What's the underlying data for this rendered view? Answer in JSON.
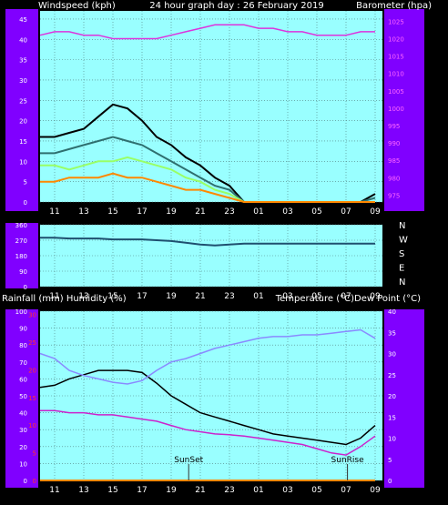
{
  "header": {
    "left": "Windspeed (kph)",
    "center": "24 hour graph day : 26 February 2019",
    "right": "Barometer (hpa)"
  },
  "mid_header": {
    "left": "Rainfall (mm)  Humidity (%)",
    "right": "Temperature (°C)Dew Point (°C)"
  },
  "colors": {
    "plot_bg": "#99ffff",
    "axis_purple": "#8000ff",
    "grid": "#4f7f7f",
    "barometer": "#dd33dd",
    "wind_gust": "#000000",
    "wind_avg": "#2f6f6f",
    "wind_light": "#99ff66",
    "wind_orange": "#ff8800",
    "direction": "#1f4f6f",
    "temperature": "#000000",
    "humidity": "#8a8aff",
    "dewpoint": "#cc22cc",
    "rain": "#ff8800"
  },
  "x_ticks": [
    "11",
    "13",
    "15",
    "17",
    "19",
    "21",
    "23",
    "01",
    "03",
    "05",
    "07",
    "09"
  ],
  "chart_data": [
    {
      "type": "line",
      "title": "24 hour graph day : 26 February 2019",
      "ylabel_left": "Windspeed (kph)",
      "ylabel_right": "Barometer (hpa)",
      "left_ticks": [
        "0",
        "5",
        "10",
        "15",
        "20",
        "25",
        "30",
        "35",
        "40",
        "45"
      ],
      "right_ticks": [
        "975",
        "980",
        "985",
        "990",
        "995",
        "1000",
        "1005",
        "1010",
        "1015",
        "1020",
        "1025"
      ],
      "ylim_left": [
        0,
        47
      ],
      "ylim_right": [
        973,
        1028
      ],
      "x": [
        10,
        11,
        12,
        13,
        14,
        15,
        16,
        17,
        18,
        19,
        20,
        21,
        22,
        23,
        24,
        25,
        26,
        27,
        28,
        29,
        30,
        31,
        32,
        33
      ],
      "series": [
        {
          "key": "barometer",
          "axis": "right",
          "values": [
            1021,
            1022,
            1022,
            1021,
            1021,
            1020,
            1020,
            1020,
            1020,
            1021,
            1022,
            1023,
            1024,
            1024,
            1024,
            1023,
            1023,
            1022,
            1022,
            1021,
            1021,
            1021,
            1022,
            1022
          ]
        },
        {
          "key": "wind_gust",
          "axis": "left",
          "values": [
            16,
            16,
            17,
            18,
            21,
            24,
            23,
            20,
            16,
            14,
            11,
            9,
            6,
            4,
            0,
            0,
            0,
            0,
            0,
            0,
            0,
            0,
            0,
            2
          ]
        },
        {
          "key": "wind_avg",
          "axis": "left",
          "values": [
            12,
            12,
            13,
            14,
            15,
            16,
            15,
            14,
            12,
            10,
            8,
            6,
            4,
            3,
            0,
            0,
            0,
            0,
            0,
            0,
            0,
            0,
            0,
            1
          ]
        },
        {
          "key": "wind_light",
          "axis": "left",
          "values": [
            9,
            9,
            8,
            9,
            10,
            10,
            11,
            10,
            9,
            8,
            6,
            5,
            3,
            2,
            0,
            0,
            0,
            0,
            0,
            0,
            0,
            0,
            0,
            0
          ]
        },
        {
          "key": "wind_orange",
          "axis": "left",
          "values": [
            5,
            5,
            6,
            6,
            6,
            7,
            6,
            6,
            5,
            4,
            3,
            3,
            2,
            1,
            0,
            0,
            0,
            0,
            0,
            0,
            0,
            0,
            0,
            0
          ]
        }
      ]
    },
    {
      "type": "line",
      "title": "",
      "ylabel_right": "",
      "left_ticks": [
        "0",
        "90",
        "180",
        "270",
        "360"
      ],
      "right_labels": [
        "N",
        "W",
        "S",
        "E",
        "N"
      ],
      "ylim_left": [
        0,
        360
      ],
      "x": [
        10,
        11,
        12,
        13,
        14,
        15,
        16,
        17,
        18,
        19,
        20,
        21,
        22,
        23,
        24,
        25,
        26,
        27,
        28,
        29,
        30,
        31,
        32,
        33
      ],
      "series": [
        {
          "key": "direction",
          "axis": "left",
          "values": [
            285,
            285,
            280,
            280,
            280,
            275,
            275,
            275,
            270,
            265,
            255,
            245,
            240,
            245,
            250,
            250,
            250,
            250,
            250,
            250,
            250,
            250,
            250,
            250
          ]
        }
      ]
    },
    {
      "type": "line",
      "title": "",
      "left_ticks": [
        "0",
        "10",
        "20",
        "30",
        "40",
        "50",
        "60",
        "70",
        "80",
        "90",
        "100"
      ],
      "rain_ticks": [
        "0",
        "5",
        "10",
        "15",
        "20",
        "25",
        "30"
      ],
      "right_ticks": [
        "0",
        "5",
        "10",
        "15",
        "20",
        "25",
        "30",
        "35",
        "40"
      ],
      "ylim_left": [
        0,
        100
      ],
      "ylim_right": [
        0,
        40
      ],
      "annotations": [
        "SunSet",
        "SunRise"
      ],
      "x": [
        10,
        11,
        12,
        13,
        14,
        15,
        16,
        17,
        18,
        19,
        20,
        21,
        22,
        23,
        24,
        25,
        26,
        27,
        28,
        29,
        30,
        31,
        32,
        33
      ],
      "series": [
        {
          "key": "temperature",
          "axis": "right",
          "values": [
            22,
            22.5,
            24,
            25,
            26,
            26,
            26,
            25.5,
            23,
            20,
            18,
            16,
            15,
            14,
            13,
            12,
            11,
            10.5,
            10,
            9.5,
            9,
            8.5,
            10,
            13
          ]
        },
        {
          "key": "humidity",
          "axis": "left",
          "values": [
            75,
            72,
            65,
            62,
            60,
            58,
            57,
            59,
            65,
            70,
            72,
            75,
            78,
            80,
            82,
            84,
            85,
            85,
            86,
            86,
            87,
            88,
            89,
            84
          ]
        },
        {
          "key": "dewpoint",
          "axis": "right",
          "values": [
            16.5,
            16.5,
            16,
            16,
            15.5,
            15.5,
            15,
            14.5,
            14,
            13,
            12,
            11.5,
            11,
            10.8,
            10.5,
            10,
            9.5,
            9,
            8.5,
            7.5,
            6.5,
            6,
            8,
            10.5
          ]
        },
        {
          "key": "rain",
          "axis": "left",
          "values": [
            0,
            0,
            0,
            0,
            0,
            0,
            0,
            0,
            0,
            0,
            0,
            0,
            0,
            0,
            0,
            0,
            0,
            0,
            0,
            0,
            0,
            0,
            0,
            0
          ]
        }
      ]
    }
  ]
}
